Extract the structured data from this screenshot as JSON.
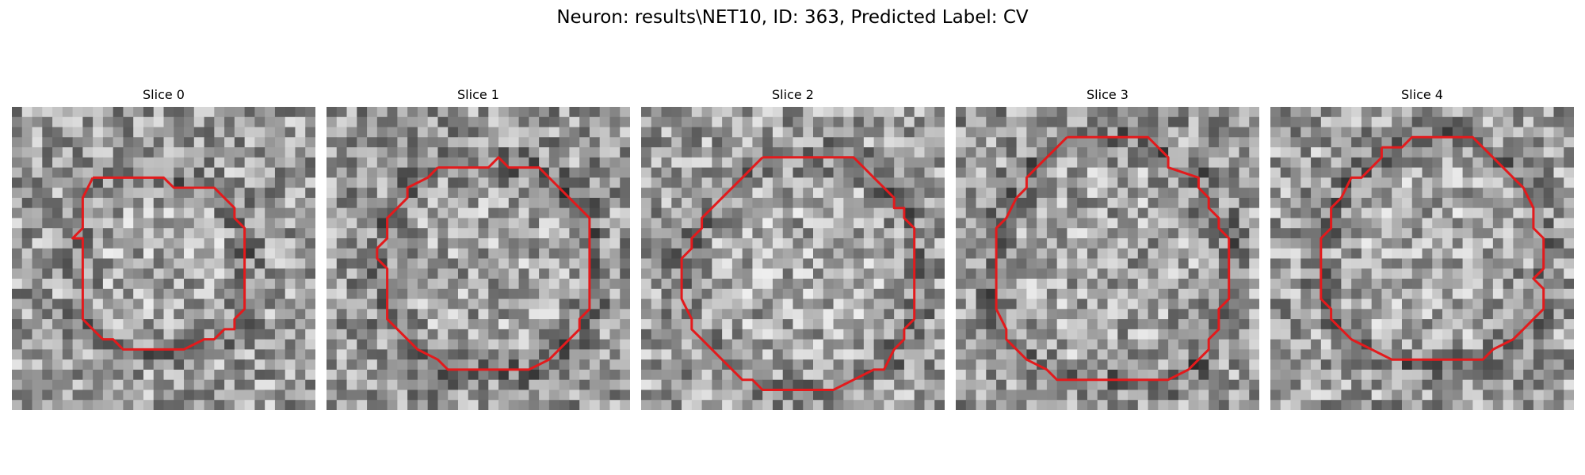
{
  "figure": {
    "title": "Neuron: results\\NET10, ID: 363, Predicted Label: CV"
  },
  "image_grid": {
    "pixels_per_side": 30,
    "colormap": "gray",
    "outline_color": "#e31a1c"
  },
  "slices": [
    {
      "label": "Slice 0",
      "base_level": 0.62,
      "outline": [
        [
          8,
          7
        ],
        [
          15,
          7
        ],
        [
          16,
          8
        ],
        [
          20,
          8
        ],
        [
          22,
          10
        ],
        [
          22,
          11
        ],
        [
          23,
          12
        ],
        [
          23,
          20
        ],
        [
          22,
          21
        ],
        [
          22,
          22
        ],
        [
          21,
          22
        ],
        [
          20,
          23
        ],
        [
          19,
          23
        ],
        [
          17,
          24
        ],
        [
          11,
          24
        ],
        [
          10,
          23
        ],
        [
          9,
          23
        ],
        [
          8,
          22
        ],
        [
          7,
          21
        ],
        [
          7,
          20
        ],
        [
          7,
          13
        ],
        [
          6,
          13
        ],
        [
          7,
          12
        ],
        [
          7,
          9
        ],
        [
          8,
          7
        ]
      ]
    },
    {
      "label": "Slice 1",
      "base_level": 0.6,
      "outline": [
        [
          11,
          6
        ],
        [
          16,
          6
        ],
        [
          17,
          5
        ],
        [
          18,
          6
        ],
        [
          21,
          6
        ],
        [
          24,
          9
        ],
        [
          26,
          11
        ],
        [
          26,
          20
        ],
        [
          25,
          21
        ],
        [
          25,
          22
        ],
        [
          23,
          24
        ],
        [
          22,
          25
        ],
        [
          20,
          26
        ],
        [
          12,
          26
        ],
        [
          11,
          25
        ],
        [
          9,
          24
        ],
        [
          8,
          23
        ],
        [
          6,
          21
        ],
        [
          6,
          16
        ],
        [
          5,
          15
        ],
        [
          5,
          14
        ],
        [
          6,
          13
        ],
        [
          6,
          11
        ],
        [
          7,
          10
        ],
        [
          8,
          9
        ],
        [
          8,
          8
        ],
        [
          10,
          7
        ],
        [
          11,
          6
        ]
      ]
    },
    {
      "label": "Slice 2",
      "base_level": 0.62,
      "outline": [
        [
          12,
          5
        ],
        [
          21,
          5
        ],
        [
          22,
          6
        ],
        [
          23,
          7
        ],
        [
          24,
          8
        ],
        [
          25,
          9
        ],
        [
          25,
          10
        ],
        [
          26,
          10
        ],
        [
          26,
          11
        ],
        [
          27,
          12
        ],
        [
          27,
          21
        ],
        [
          26,
          22
        ],
        [
          26,
          23
        ],
        [
          25,
          24
        ],
        [
          24,
          26
        ],
        [
          23,
          26
        ],
        [
          21,
          27
        ],
        [
          19,
          28
        ],
        [
          12,
          28
        ],
        [
          11,
          27
        ],
        [
          10,
          27
        ],
        [
          9,
          26
        ],
        [
          8,
          25
        ],
        [
          7,
          24
        ],
        [
          6,
          23
        ],
        [
          5,
          22
        ],
        [
          5,
          21
        ],
        [
          4,
          19
        ],
        [
          4,
          15
        ],
        [
          5,
          14
        ],
        [
          5,
          13
        ],
        [
          6,
          12
        ],
        [
          6,
          11
        ],
        [
          7,
          10
        ],
        [
          8,
          9
        ],
        [
          10,
          7
        ],
        [
          11,
          6
        ],
        [
          12,
          5
        ]
      ]
    },
    {
      "label": "Slice 3",
      "base_level": 0.6,
      "outline": [
        [
          11,
          3
        ],
        [
          19,
          3
        ],
        [
          20,
          4
        ],
        [
          21,
          5
        ],
        [
          21,
          6
        ],
        [
          24,
          7
        ],
        [
          24,
          8
        ],
        [
          25,
          9
        ],
        [
          25,
          10
        ],
        [
          26,
          11
        ],
        [
          26,
          12
        ],
        [
          27,
          13
        ],
        [
          27,
          19
        ],
        [
          26,
          20
        ],
        [
          26,
          22
        ],
        [
          25,
          23
        ],
        [
          25,
          24
        ],
        [
          23,
          26
        ],
        [
          21,
          27
        ],
        [
          10,
          27
        ],
        [
          9,
          26
        ],
        [
          7,
          25
        ],
        [
          5,
          23
        ],
        [
          5,
          22
        ],
        [
          4,
          20
        ],
        [
          4,
          19
        ],
        [
          4,
          12
        ],
        [
          5,
          11
        ],
        [
          6,
          9
        ],
        [
          7,
          8
        ],
        [
          7,
          7
        ],
        [
          8,
          6
        ],
        [
          9,
          5
        ],
        [
          10,
          4
        ],
        [
          11,
          3
        ]
      ]
    },
    {
      "label": "Slice 4",
      "base_level": 0.62,
      "outline": [
        [
          11,
          4
        ],
        [
          13,
          4
        ],
        [
          14,
          3
        ],
        [
          20,
          3
        ],
        [
          21,
          4
        ],
        [
          22,
          5
        ],
        [
          23,
          6
        ],
        [
          24,
          7
        ],
        [
          25,
          8
        ],
        [
          26,
          10
        ],
        [
          26,
          12
        ],
        [
          27,
          13
        ],
        [
          27,
          16
        ],
        [
          26,
          17
        ],
        [
          27,
          18
        ],
        [
          27,
          20
        ],
        [
          26,
          21
        ],
        [
          25,
          22
        ],
        [
          24,
          23
        ],
        [
          22,
          24
        ],
        [
          21,
          25
        ],
        [
          18,
          25
        ],
        [
          12,
          25
        ],
        [
          10,
          24
        ],
        [
          8,
          23
        ],
        [
          7,
          22
        ],
        [
          6,
          21
        ],
        [
          6,
          20
        ],
        [
          5,
          19
        ],
        [
          5,
          13
        ],
        [
          6,
          12
        ],
        [
          6,
          10
        ],
        [
          7,
          9
        ],
        [
          8,
          7
        ],
        [
          9,
          7
        ],
        [
          10,
          6
        ],
        [
          11,
          5
        ],
        [
          11,
          4
        ]
      ]
    }
  ]
}
